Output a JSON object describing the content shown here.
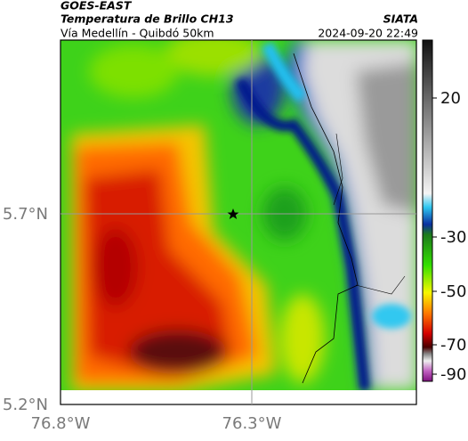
{
  "header": {
    "satellite": "GOES-EAST",
    "product": "Temperatura de Brillo CH13",
    "route": "Vía Medellín - Quibdó 50km",
    "source": "SIATA",
    "timestamp": "2024-09-20 22:49"
  },
  "map": {
    "lat_labels": [
      "5.7°N",
      "5.2°N"
    ],
    "lon_labels": [
      "76.8°W",
      "76.3°W"
    ]
  },
  "colorbar": {
    "ticks": [
      20,
      -30,
      -50,
      -70,
      -90
    ]
  }
}
